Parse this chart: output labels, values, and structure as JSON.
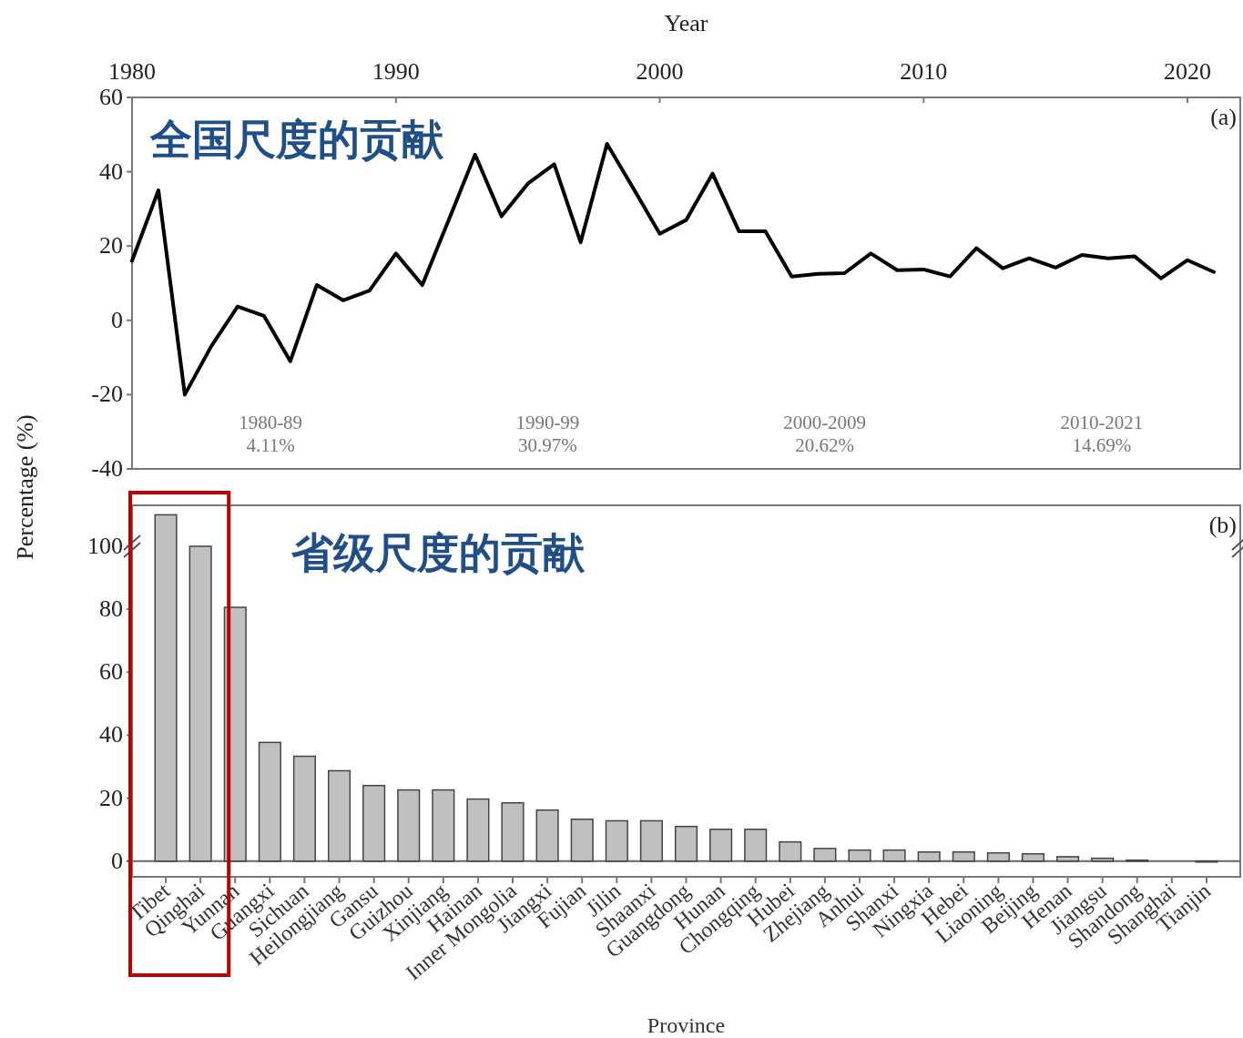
{
  "chart_data": [
    {
      "type": "line",
      "title": "全国尺度的贡献",
      "xlabel": "Year",
      "ylabel": "Percentage (%)",
      "x": [
        1980,
        1981,
        1982,
        1983,
        1984,
        1985,
        1986,
        1987,
        1988,
        1989,
        1990,
        1991,
        1992,
        1993,
        1994,
        1995,
        1996,
        1997,
        1998,
        1999,
        2000,
        2001,
        2002,
        2003,
        2004,
        2005,
        2006,
        2007,
        2008,
        2009,
        2010,
        2011,
        2012,
        2013,
        2014,
        2015,
        2016,
        2017,
        2018,
        2019,
        2020,
        2021
      ],
      "values": [
        16,
        35,
        -20,
        -7,
        3.7,
        1.2,
        -11,
        9.5,
        5.4,
        8,
        18,
        9.5,
        27,
        44.6,
        28,
        36.8,
        42,
        21,
        47.5,
        35.5,
        23.3,
        27,
        39.5,
        24,
        24,
        11.8,
        12.5,
        12.7,
        18,
        13.5,
        13.7,
        11.8,
        19.4,
        14,
        16.7,
        14.2,
        17.6,
        16.7,
        17.2,
        11.3,
        16.2,
        13
      ],
      "color": "#000000",
      "xlim": [
        1980,
        2022
      ],
      "xticks": [
        1980,
        1990,
        2000,
        2010,
        2020
      ],
      "ylim": [
        -40,
        60
      ],
      "yticks": [
        -40,
        -20,
        0,
        20,
        40,
        60
      ],
      "annotations": [
        "(a)",
        "1980-89\n4.11%",
        "1990-99\n30.97%",
        "2000-2009\n20.62%",
        "2010-2021\n14.69%"
      ]
    },
    {
      "type": "bar",
      "title": "省级尺度的贡献",
      "xlabel": "Province",
      "categories": [
        "Tibet",
        "Qinghai",
        "Yunnan",
        "Guangxi",
        "Sichuan",
        "Heilongjiang",
        "Gansu",
        "Guizhou",
        "Xinjiang",
        "Hainan",
        "Inner Mongolia",
        "Jiangxi",
        "Fujian",
        "Jilin",
        "Shaanxi",
        "Guangdong",
        "Hunan",
        "Chongqing",
        "Hubei",
        "Zhejiang",
        "Anhui",
        "Shanxi",
        "Ningxia",
        "Hebei",
        "Liaoning",
        "Beijing",
        "Henan",
        "Jiangsu",
        "Shandong",
        "Shanghai",
        "Tianjin"
      ],
      "values": [
        110,
        100,
        80.6,
        37.7,
        33.3,
        28.7,
        24,
        22.6,
        22.6,
        19.7,
        18.5,
        16.2,
        13.3,
        12.8,
        12.8,
        11,
        10.1,
        10.1,
        6.1,
        4,
        3.5,
        3.5,
        2.9,
        2.9,
        2.6,
        2.3,
        1.4,
        0.9,
        0.3,
        0,
        -0.3
      ],
      "color": "#c0c0c0",
      "ylim": [
        -5,
        113
      ],
      "yticks": [
        0,
        20,
        40,
        60,
        80,
        100
      ],
      "annotations": [
        "(b)"
      ]
    }
  ]
}
